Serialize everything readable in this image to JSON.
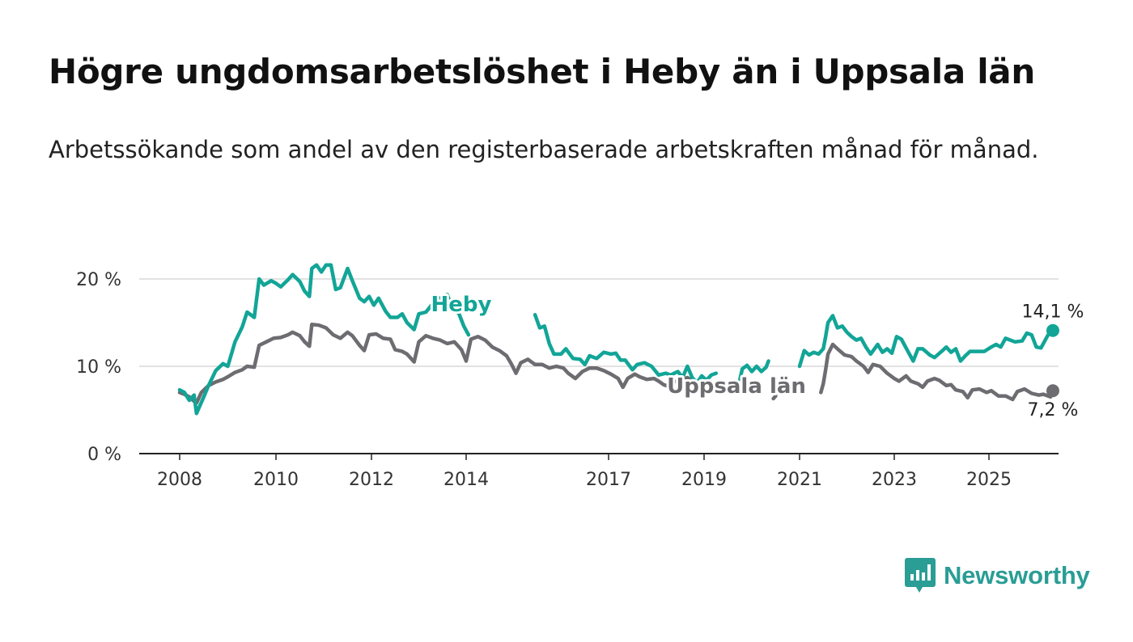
{
  "title": "Högre ungdomsarbetslöshet i Heby än i Uppsala län",
  "subtitle": "Arbetssökande som andel av den registerbaserade arbetskraften månad för månad.",
  "brand": {
    "name": "Newsworthy",
    "icon": "newsworthy-logo-icon"
  },
  "colors": {
    "heby": "#12a597",
    "uppsala": "#6d6c71",
    "grid": "#d9d9d9",
    "axis": "#222222"
  },
  "chart_data": {
    "type": "line",
    "title": "Högre ungdomsarbetslöshet i Heby än i Uppsala län",
    "subtitle": "Arbetssökande som andel av den registerbaserade arbetskraften månad för månad.",
    "xlim": [
      2007.85,
      2025.95
    ],
    "ylim": [
      0,
      20
    ],
    "yticks": [
      0,
      10,
      20
    ],
    "ytick_labels": [
      "0 %",
      "10 %",
      "20 %"
    ],
    "xticks": [
      2008,
      2010,
      2012,
      2014,
      2017,
      2019,
      2021,
      2023,
      2025
    ],
    "xtick_labels": [
      "2008",
      "2010",
      "2012",
      "2014",
      "2017",
      "2019",
      "2021",
      "2023",
      "2025"
    ],
    "grid": "horizontal",
    "series": [
      {
        "name": "Heby",
        "end_label": "14,1 %",
        "points": [
          [
            2008.0,
            7.3
          ],
          [
            2008.1,
            7.0
          ],
          [
            2008.2,
            6.1
          ],
          [
            2008.3,
            6.7
          ],
          [
            2008.35,
            4.6
          ],
          [
            2008.5,
            6.5
          ],
          [
            2008.6,
            7.8
          ],
          [
            2008.75,
            9.5
          ],
          [
            2008.9,
            10.3
          ],
          [
            2009.0,
            10.0
          ],
          [
            2009.15,
            12.8
          ],
          [
            2009.3,
            14.5
          ],
          [
            2009.4,
            16.2
          ],
          [
            2009.55,
            15.6
          ],
          [
            2009.65,
            20.0
          ],
          [
            2009.75,
            19.3
          ],
          [
            2009.9,
            19.8
          ],
          [
            2010.0,
            19.5
          ],
          [
            2010.1,
            19.1
          ],
          [
            2010.25,
            19.9
          ],
          [
            2010.35,
            20.5
          ],
          [
            2010.5,
            19.7
          ],
          [
            2010.6,
            18.6
          ],
          [
            2010.7,
            18.0
          ],
          [
            2010.75,
            21.2
          ],
          [
            2010.85,
            21.6
          ],
          [
            2010.95,
            20.8
          ],
          [
            2011.05,
            21.6
          ],
          [
            2011.15,
            21.6
          ],
          [
            2011.25,
            18.8
          ],
          [
            2011.35,
            19.0
          ],
          [
            2011.5,
            21.2
          ],
          [
            2011.6,
            19.8
          ],
          [
            2011.75,
            17.8
          ],
          [
            2011.85,
            17.4
          ],
          [
            2011.95,
            18.0
          ],
          [
            2012.05,
            17.0
          ],
          [
            2012.15,
            17.8
          ],
          [
            2012.3,
            16.3
          ],
          [
            2012.4,
            15.6
          ],
          [
            2012.55,
            15.6
          ],
          [
            2012.65,
            16.0
          ],
          [
            2012.75,
            15.0
          ],
          [
            2012.9,
            14.2
          ],
          [
            2013.0,
            16.0
          ],
          [
            2013.15,
            16.2
          ],
          [
            2013.3,
            17.2
          ],
          [
            2013.45,
            17.8
          ],
          [
            2013.6,
            18.2
          ],
          [
            2013.7,
            16.8
          ],
          [
            2013.85,
            16.0
          ],
          [
            2013.95,
            14.6
          ],
          [
            2014.05,
            13.6
          ]
        ],
        "points2": [
          [
            2015.45,
            15.9
          ],
          [
            2015.55,
            14.4
          ],
          [
            2015.65,
            14.6
          ],
          [
            2015.75,
            12.6
          ],
          [
            2015.85,
            11.4
          ],
          [
            2016.0,
            11.4
          ],
          [
            2016.1,
            12.0
          ],
          [
            2016.25,
            10.9
          ],
          [
            2016.4,
            10.8
          ],
          [
            2016.5,
            10.2
          ],
          [
            2016.6,
            11.2
          ],
          [
            2016.75,
            10.9
          ],
          [
            2016.9,
            11.6
          ],
          [
            2017.05,
            11.4
          ],
          [
            2017.15,
            11.5
          ],
          [
            2017.25,
            10.7
          ],
          [
            2017.35,
            10.7
          ],
          [
            2017.5,
            9.6
          ],
          [
            2017.6,
            10.2
          ],
          [
            2017.75,
            10.4
          ],
          [
            2017.9,
            10.0
          ],
          [
            2018.05,
            9.0
          ],
          [
            2018.2,
            9.2
          ],
          [
            2018.3,
            9.0
          ],
          [
            2018.45,
            9.4
          ],
          [
            2018.55,
            8.7
          ],
          [
            2018.65,
            10.0
          ],
          [
            2018.75,
            8.7
          ],
          [
            2018.85,
            8.1
          ],
          [
            2018.95,
            8.9
          ],
          [
            2019.05,
            8.4
          ],
          [
            2019.15,
            9.0
          ],
          [
            2019.25,
            9.2
          ]
        ],
        "points3": [
          [
            2019.75,
            8.5
          ],
          [
            2019.8,
            9.7
          ],
          [
            2019.9,
            10.1
          ],
          [
            2020.0,
            9.4
          ],
          [
            2020.1,
            10.0
          ],
          [
            2020.2,
            9.4
          ],
          [
            2020.3,
            9.9
          ],
          [
            2020.35,
            10.6
          ]
        ],
        "points4": [
          [
            2021.0,
            10.0
          ],
          [
            2021.1,
            11.8
          ],
          [
            2021.2,
            11.3
          ],
          [
            2021.3,
            11.6
          ],
          [
            2021.4,
            11.4
          ],
          [
            2021.5,
            12.0
          ],
          [
            2021.55,
            13.4
          ],
          [
            2021.6,
            15.0
          ],
          [
            2021.7,
            15.8
          ],
          [
            2021.8,
            14.4
          ],
          [
            2021.9,
            14.6
          ],
          [
            2022.0,
            13.9
          ],
          [
            2022.1,
            13.4
          ],
          [
            2022.2,
            13.0
          ],
          [
            2022.3,
            13.2
          ],
          [
            2022.4,
            12.2
          ],
          [
            2022.5,
            11.4
          ],
          [
            2022.65,
            12.5
          ],
          [
            2022.75,
            11.6
          ],
          [
            2022.85,
            12.0
          ],
          [
            2022.95,
            11.5
          ],
          [
            2023.05,
            13.4
          ],
          [
            2023.15,
            13.1
          ],
          [
            2023.3,
            11.6
          ],
          [
            2023.4,
            10.6
          ],
          [
            2023.5,
            12.0
          ],
          [
            2023.6,
            12.0
          ],
          [
            2023.75,
            11.3
          ],
          [
            2023.85,
            11.0
          ],
          [
            2024.0,
            11.7
          ],
          [
            2024.1,
            12.2
          ],
          [
            2024.2,
            11.6
          ],
          [
            2024.3,
            12.0
          ],
          [
            2024.4,
            10.6
          ],
          [
            2024.5,
            11.2
          ],
          [
            2024.6,
            11.7
          ],
          [
            2024.75,
            11.7
          ],
          [
            2024.9,
            11.7
          ],
          [
            2025.05,
            12.2
          ],
          [
            2025.15,
            12.5
          ],
          [
            2025.25,
            12.2
          ],
          [
            2025.35,
            13.2
          ],
          [
            2025.45,
            13.0
          ],
          [
            2025.55,
            12.8
          ],
          [
            2025.7,
            12.9
          ],
          [
            2025.8,
            13.8
          ],
          [
            2025.9,
            13.6
          ],
          [
            2026.0,
            12.2
          ],
          [
            2026.1,
            12.1
          ],
          [
            2026.25,
            13.6
          ],
          [
            2026.35,
            14.1
          ]
        ]
      },
      {
        "name": "Uppsala län",
        "end_label": "7,2 %",
        "points": [
          [
            2008.0,
            7.0
          ],
          [
            2008.1,
            6.8
          ],
          [
            2008.2,
            6.5
          ],
          [
            2008.3,
            6.0
          ],
          [
            2008.35,
            5.8
          ],
          [
            2008.45,
            7.0
          ],
          [
            2008.6,
            7.8
          ],
          [
            2008.75,
            8.2
          ],
          [
            2008.9,
            8.5
          ],
          [
            2009.0,
            8.8
          ],
          [
            2009.15,
            9.3
          ],
          [
            2009.3,
            9.6
          ],
          [
            2009.4,
            10.0
          ],
          [
            2009.55,
            9.9
          ],
          [
            2009.65,
            12.4
          ],
          [
            2009.8,
            12.8
          ],
          [
            2009.95,
            13.2
          ],
          [
            2010.1,
            13.3
          ],
          [
            2010.25,
            13.6
          ],
          [
            2010.35,
            13.9
          ],
          [
            2010.5,
            13.5
          ],
          [
            2010.6,
            12.8
          ],
          [
            2010.7,
            12.3
          ],
          [
            2010.75,
            14.8
          ],
          [
            2010.9,
            14.7
          ],
          [
            2011.05,
            14.4
          ],
          [
            2011.2,
            13.6
          ],
          [
            2011.35,
            13.2
          ],
          [
            2011.5,
            13.9
          ],
          [
            2011.6,
            13.5
          ],
          [
            2011.75,
            12.4
          ],
          [
            2011.85,
            11.8
          ],
          [
            2011.95,
            13.6
          ],
          [
            2012.1,
            13.7
          ],
          [
            2012.25,
            13.2
          ],
          [
            2012.4,
            13.1
          ],
          [
            2012.5,
            11.9
          ],
          [
            2012.65,
            11.7
          ],
          [
            2012.75,
            11.4
          ],
          [
            2012.9,
            10.5
          ],
          [
            2013.0,
            12.8
          ],
          [
            2013.15,
            13.5
          ],
          [
            2013.3,
            13.2
          ],
          [
            2013.45,
            13.0
          ],
          [
            2013.6,
            12.6
          ],
          [
            2013.75,
            12.8
          ],
          [
            2013.9,
            11.9
          ],
          [
            2014.0,
            10.6
          ],
          [
            2014.1,
            13.1
          ],
          [
            2014.25,
            13.4
          ],
          [
            2014.4,
            13.0
          ],
          [
            2014.55,
            12.2
          ],
          [
            2014.7,
            11.8
          ],
          [
            2014.85,
            11.2
          ],
          [
            2014.95,
            10.3
          ],
          [
            2015.05,
            9.2
          ],
          [
            2015.15,
            10.4
          ],
          [
            2015.3,
            10.8
          ],
          [
            2015.45,
            10.2
          ],
          [
            2015.6,
            10.2
          ],
          [
            2015.75,
            9.8
          ],
          [
            2015.9,
            10.0
          ],
          [
            2016.05,
            9.8
          ],
          [
            2016.15,
            9.2
          ],
          [
            2016.3,
            8.6
          ],
          [
            2016.45,
            9.4
          ],
          [
            2016.6,
            9.8
          ],
          [
            2016.75,
            9.8
          ],
          [
            2016.9,
            9.5
          ],
          [
            2017.05,
            9.1
          ],
          [
            2017.2,
            8.6
          ],
          [
            2017.3,
            7.6
          ],
          [
            2017.4,
            8.6
          ],
          [
            2017.55,
            9.1
          ],
          [
            2017.65,
            8.8
          ],
          [
            2017.8,
            8.5
          ],
          [
            2017.95,
            8.6
          ],
          [
            2018.05,
            8.3
          ],
          [
            2018.15,
            7.9
          ],
          [
            2018.25,
            7.7
          ],
          [
            2018.35,
            8.2
          ],
          [
            2018.5,
            8.4
          ],
          [
            2018.65,
            8.7
          ],
          [
            2018.8,
            8.2
          ],
          [
            2018.9,
            7.8
          ],
          [
            2019.05,
            7.4
          ]
        ],
        "points2": [
          [
            2020.45,
            6.3
          ],
          [
            2020.5,
            6.6
          ]
        ],
        "points3": [
          [
            2021.45,
            7.0
          ],
          [
            2021.5,
            8.0
          ],
          [
            2021.55,
            9.6
          ],
          [
            2021.6,
            11.4
          ],
          [
            2021.7,
            12.5
          ],
          [
            2021.8,
            12.0
          ],
          [
            2021.95,
            11.3
          ],
          [
            2022.1,
            11.1
          ],
          [
            2022.2,
            10.6
          ],
          [
            2022.35,
            10.0
          ],
          [
            2022.45,
            9.3
          ],
          [
            2022.55,
            10.2
          ],
          [
            2022.7,
            10.0
          ],
          [
            2022.85,
            9.2
          ],
          [
            2023.0,
            8.6
          ],
          [
            2023.1,
            8.3
          ],
          [
            2023.25,
            8.9
          ],
          [
            2023.35,
            8.3
          ],
          [
            2023.5,
            8.0
          ],
          [
            2023.6,
            7.6
          ],
          [
            2023.7,
            8.3
          ],
          [
            2023.85,
            8.6
          ],
          [
            2023.95,
            8.4
          ],
          [
            2024.1,
            7.8
          ],
          [
            2024.2,
            7.9
          ],
          [
            2024.3,
            7.3
          ],
          [
            2024.45,
            7.1
          ],
          [
            2024.55,
            6.4
          ],
          [
            2024.65,
            7.3
          ],
          [
            2024.8,
            7.4
          ],
          [
            2024.95,
            7.0
          ],
          [
            2025.05,
            7.2
          ],
          [
            2025.2,
            6.6
          ],
          [
            2025.35,
            6.6
          ],
          [
            2025.5,
            6.2
          ],
          [
            2025.6,
            7.1
          ],
          [
            2025.75,
            7.4
          ],
          [
            2025.9,
            6.9
          ],
          [
            2026.05,
            6.7
          ],
          [
            2026.15,
            6.8
          ],
          [
            2026.3,
            6.5
          ]
        ],
        "points4": [
          [
            2026.3,
            6.5
          ],
          [
            2026.35,
            7.2
          ]
        ]
      }
    ]
  }
}
